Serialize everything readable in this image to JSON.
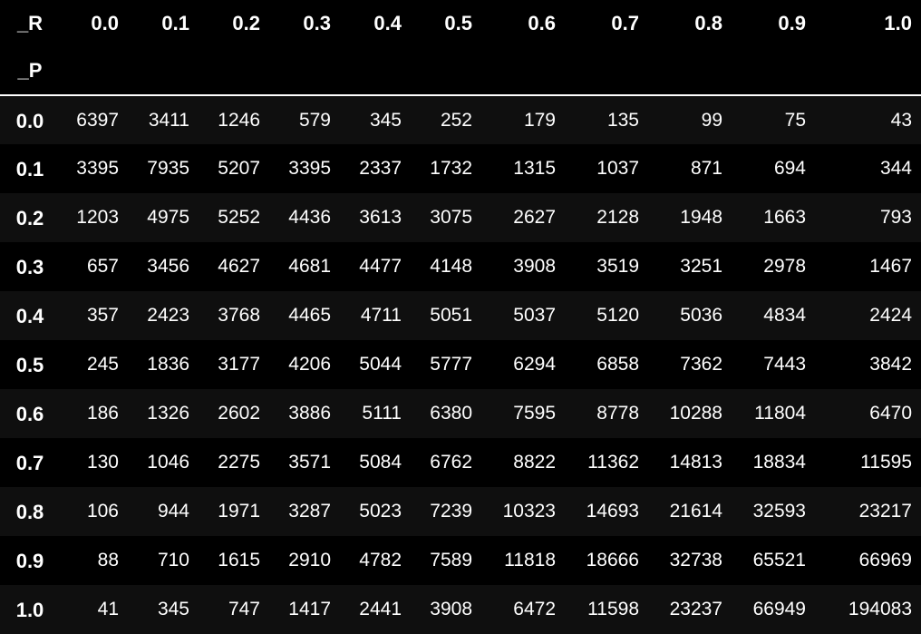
{
  "table": {
    "column_axis_label": "_R",
    "row_axis_label": "_P",
    "columns": [
      "0.0",
      "0.1",
      "0.2",
      "0.3",
      "0.4",
      "0.5",
      "0.6",
      "0.7",
      "0.8",
      "0.9",
      "1.0"
    ],
    "rows": [
      {
        "index": "0.0",
        "values": [
          "6397",
          "3411",
          "1246",
          "579",
          "345",
          "252",
          "179",
          "135",
          "99",
          "75",
          "43"
        ]
      },
      {
        "index": "0.1",
        "values": [
          "3395",
          "7935",
          "5207",
          "3395",
          "2337",
          "1732",
          "1315",
          "1037",
          "871",
          "694",
          "344"
        ]
      },
      {
        "index": "0.2",
        "values": [
          "1203",
          "4975",
          "5252",
          "4436",
          "3613",
          "3075",
          "2627",
          "2128",
          "1948",
          "1663",
          "793"
        ]
      },
      {
        "index": "0.3",
        "values": [
          "657",
          "3456",
          "4627",
          "4681",
          "4477",
          "4148",
          "3908",
          "3519",
          "3251",
          "2978",
          "1467"
        ]
      },
      {
        "index": "0.4",
        "values": [
          "357",
          "2423",
          "3768",
          "4465",
          "4711",
          "5051",
          "5037",
          "5120",
          "5036",
          "4834",
          "2424"
        ]
      },
      {
        "index": "0.5",
        "values": [
          "245",
          "1836",
          "3177",
          "4206",
          "5044",
          "5777",
          "6294",
          "6858",
          "7362",
          "7443",
          "3842"
        ]
      },
      {
        "index": "0.6",
        "values": [
          "186",
          "1326",
          "2602",
          "3886",
          "5111",
          "6380",
          "7595",
          "8778",
          "10288",
          "11804",
          "6470"
        ]
      },
      {
        "index": "0.7",
        "values": [
          "130",
          "1046",
          "2275",
          "3571",
          "5084",
          "6762",
          "8822",
          "11362",
          "14813",
          "18834",
          "11595"
        ]
      },
      {
        "index": "0.8",
        "values": [
          "106",
          "944",
          "1971",
          "3287",
          "5023",
          "7239",
          "10323",
          "14693",
          "21614",
          "32593",
          "23217"
        ]
      },
      {
        "index": "0.9",
        "values": [
          "88",
          "710",
          "1615",
          "2910",
          "4782",
          "7589",
          "11818",
          "18666",
          "32738",
          "65521",
          "66969"
        ]
      },
      {
        "index": "1.0",
        "values": [
          "41",
          "345",
          "747",
          "1417",
          "2441",
          "3908",
          "6472",
          "11598",
          "23237",
          "66949",
          "194083"
        ]
      }
    ]
  }
}
